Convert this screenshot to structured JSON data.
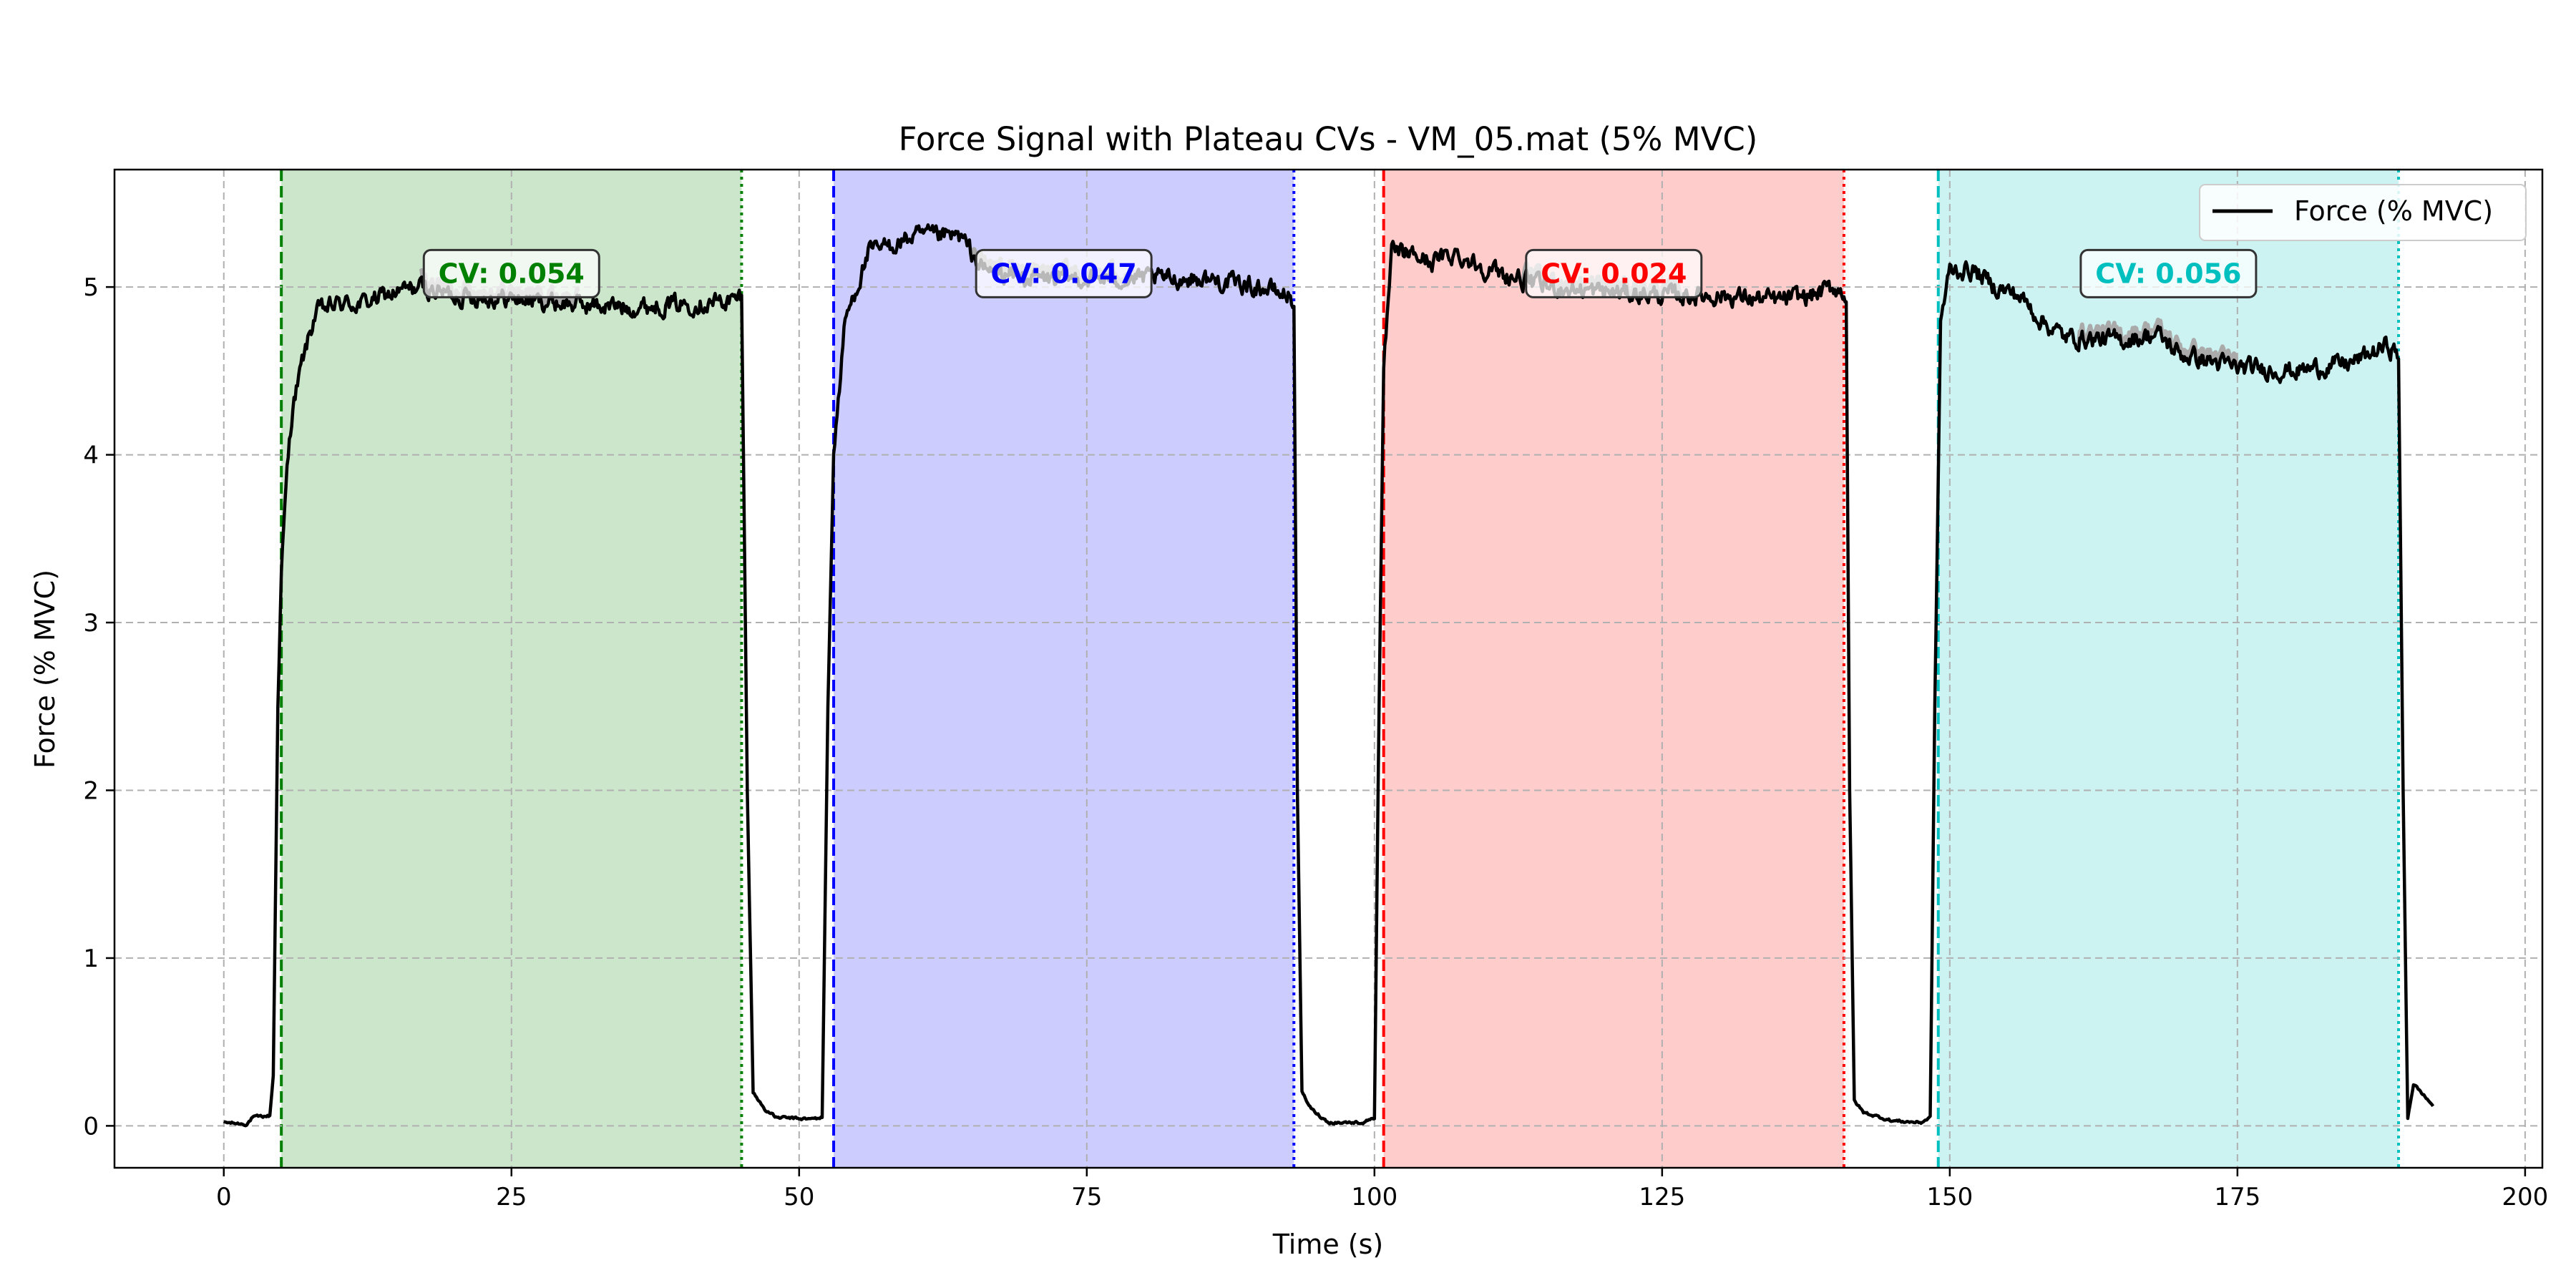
{
  "chart_data": {
    "type": "line",
    "title": "Force Signal with Plateau CVs - VM_05.mat (5% MVC)",
    "xlabel": "Time (s)",
    "ylabel": "Force (% MVC)",
    "xlim": [
      -9.5,
      201.5
    ],
    "ylim": [
      -0.25,
      5.7
    ],
    "xticks": [
      0,
      25,
      50,
      75,
      100,
      125,
      150,
      175,
      200
    ],
    "yticks": [
      0,
      1,
      2,
      3,
      4,
      5
    ],
    "grid": true,
    "legend": {
      "position": "top-right",
      "entries": [
        "Force (% MVC)"
      ]
    },
    "series": [
      {
        "name": "Force (% MVC)",
        "color": "#000000",
        "keypoints": [
          [
            0,
            0.02
          ],
          [
            2,
            0.01
          ],
          [
            2.5,
            0.05
          ],
          [
            4,
            0.06
          ],
          [
            4.3,
            0.3
          ],
          [
            4.7,
            2.5
          ],
          [
            5,
            3.3
          ],
          [
            5.5,
            3.9
          ],
          [
            6,
            4.3
          ],
          [
            7,
            4.6
          ],
          [
            8,
            4.85
          ],
          [
            10,
            4.9
          ],
          [
            12,
            4.9
          ],
          [
            14,
            4.95
          ],
          [
            17,
            5.0
          ],
          [
            20,
            4.95
          ],
          [
            25,
            4.93
          ],
          [
            30,
            4.9
          ],
          [
            35,
            4.88
          ],
          [
            40,
            4.9
          ],
          [
            44.5,
            4.92
          ],
          [
            45,
            4.95
          ],
          [
            45.5,
            2.0
          ],
          [
            46,
            0.2
          ],
          [
            47,
            0.1
          ],
          [
            48,
            0.05
          ],
          [
            51,
            0.04
          ],
          [
            52,
            0.05
          ],
          [
            52.5,
            2.5
          ],
          [
            53,
            4.0
          ],
          [
            54,
            4.8
          ],
          [
            56,
            5.2
          ],
          [
            58,
            5.25
          ],
          [
            60,
            5.3
          ],
          [
            62,
            5.3
          ],
          [
            64,
            5.3
          ],
          [
            66,
            5.1
          ],
          [
            70,
            5.05
          ],
          [
            75,
            5.05
          ],
          [
            80,
            5.05
          ],
          [
            85,
            5.05
          ],
          [
            90,
            5.0
          ],
          [
            92.5,
            4.95
          ],
          [
            93,
            4.9
          ],
          [
            93.3,
            2.0
          ],
          [
            93.7,
            0.2
          ],
          [
            94.5,
            0.1
          ],
          [
            96,
            0.02
          ],
          [
            99,
            0.02
          ],
          [
            100,
            0.05
          ],
          [
            100.4,
            2.5
          ],
          [
            100.8,
            4.5
          ],
          [
            101.5,
            5.2
          ],
          [
            103,
            5.2
          ],
          [
            105,
            5.15
          ],
          [
            107,
            5.2
          ],
          [
            110,
            5.1
          ],
          [
            115,
            5.0
          ],
          [
            120,
            4.97
          ],
          [
            125,
            4.95
          ],
          [
            130,
            4.95
          ],
          [
            135,
            4.92
          ],
          [
            138,
            4.95
          ],
          [
            140,
            5.0
          ],
          [
            141,
            4.95
          ],
          [
            141.3,
            2.0
          ],
          [
            141.7,
            0.15
          ],
          [
            142.5,
            0.08
          ],
          [
            145,
            0.03
          ],
          [
            147.5,
            0.02
          ],
          [
            148.3,
            0.05
          ],
          [
            148.7,
            2.5
          ],
          [
            149.2,
            4.8
          ],
          [
            150,
            5.1
          ],
          [
            152,
            5.1
          ],
          [
            154,
            5.0
          ],
          [
            156,
            4.95
          ],
          [
            158,
            4.8
          ],
          [
            160,
            4.7
          ],
          [
            165,
            4.68
          ],
          [
            168,
            4.72
          ],
          [
            170,
            4.6
          ],
          [
            175,
            4.52
          ],
          [
            180,
            4.5
          ],
          [
            185,
            4.55
          ],
          [
            188,
            4.65
          ],
          [
            189,
            4.6
          ],
          [
            189.4,
            2.0
          ],
          [
            189.8,
            0.05
          ],
          [
            190.3,
            0.25
          ],
          [
            192,
            0.12
          ]
        ]
      }
    ],
    "plateaus": [
      {
        "start": 5,
        "end": 45,
        "cv_label": "CV: 0.054",
        "color": "#008000",
        "fill": "#008000"
      },
      {
        "start": 53,
        "end": 93,
        "cv_label": "CV: 0.047",
        "color": "#0000ff",
        "fill": "#0000ff"
      },
      {
        "start": 100.8,
        "end": 140.8,
        "cv_label": "CV: 0.024",
        "color": "#ff0000",
        "fill": "#ff0000"
      },
      {
        "start": 149,
        "end": 189,
        "cv_label": "CV: 0.056",
        "color": "#00bfbf",
        "fill": "#00bfbf"
      }
    ]
  }
}
